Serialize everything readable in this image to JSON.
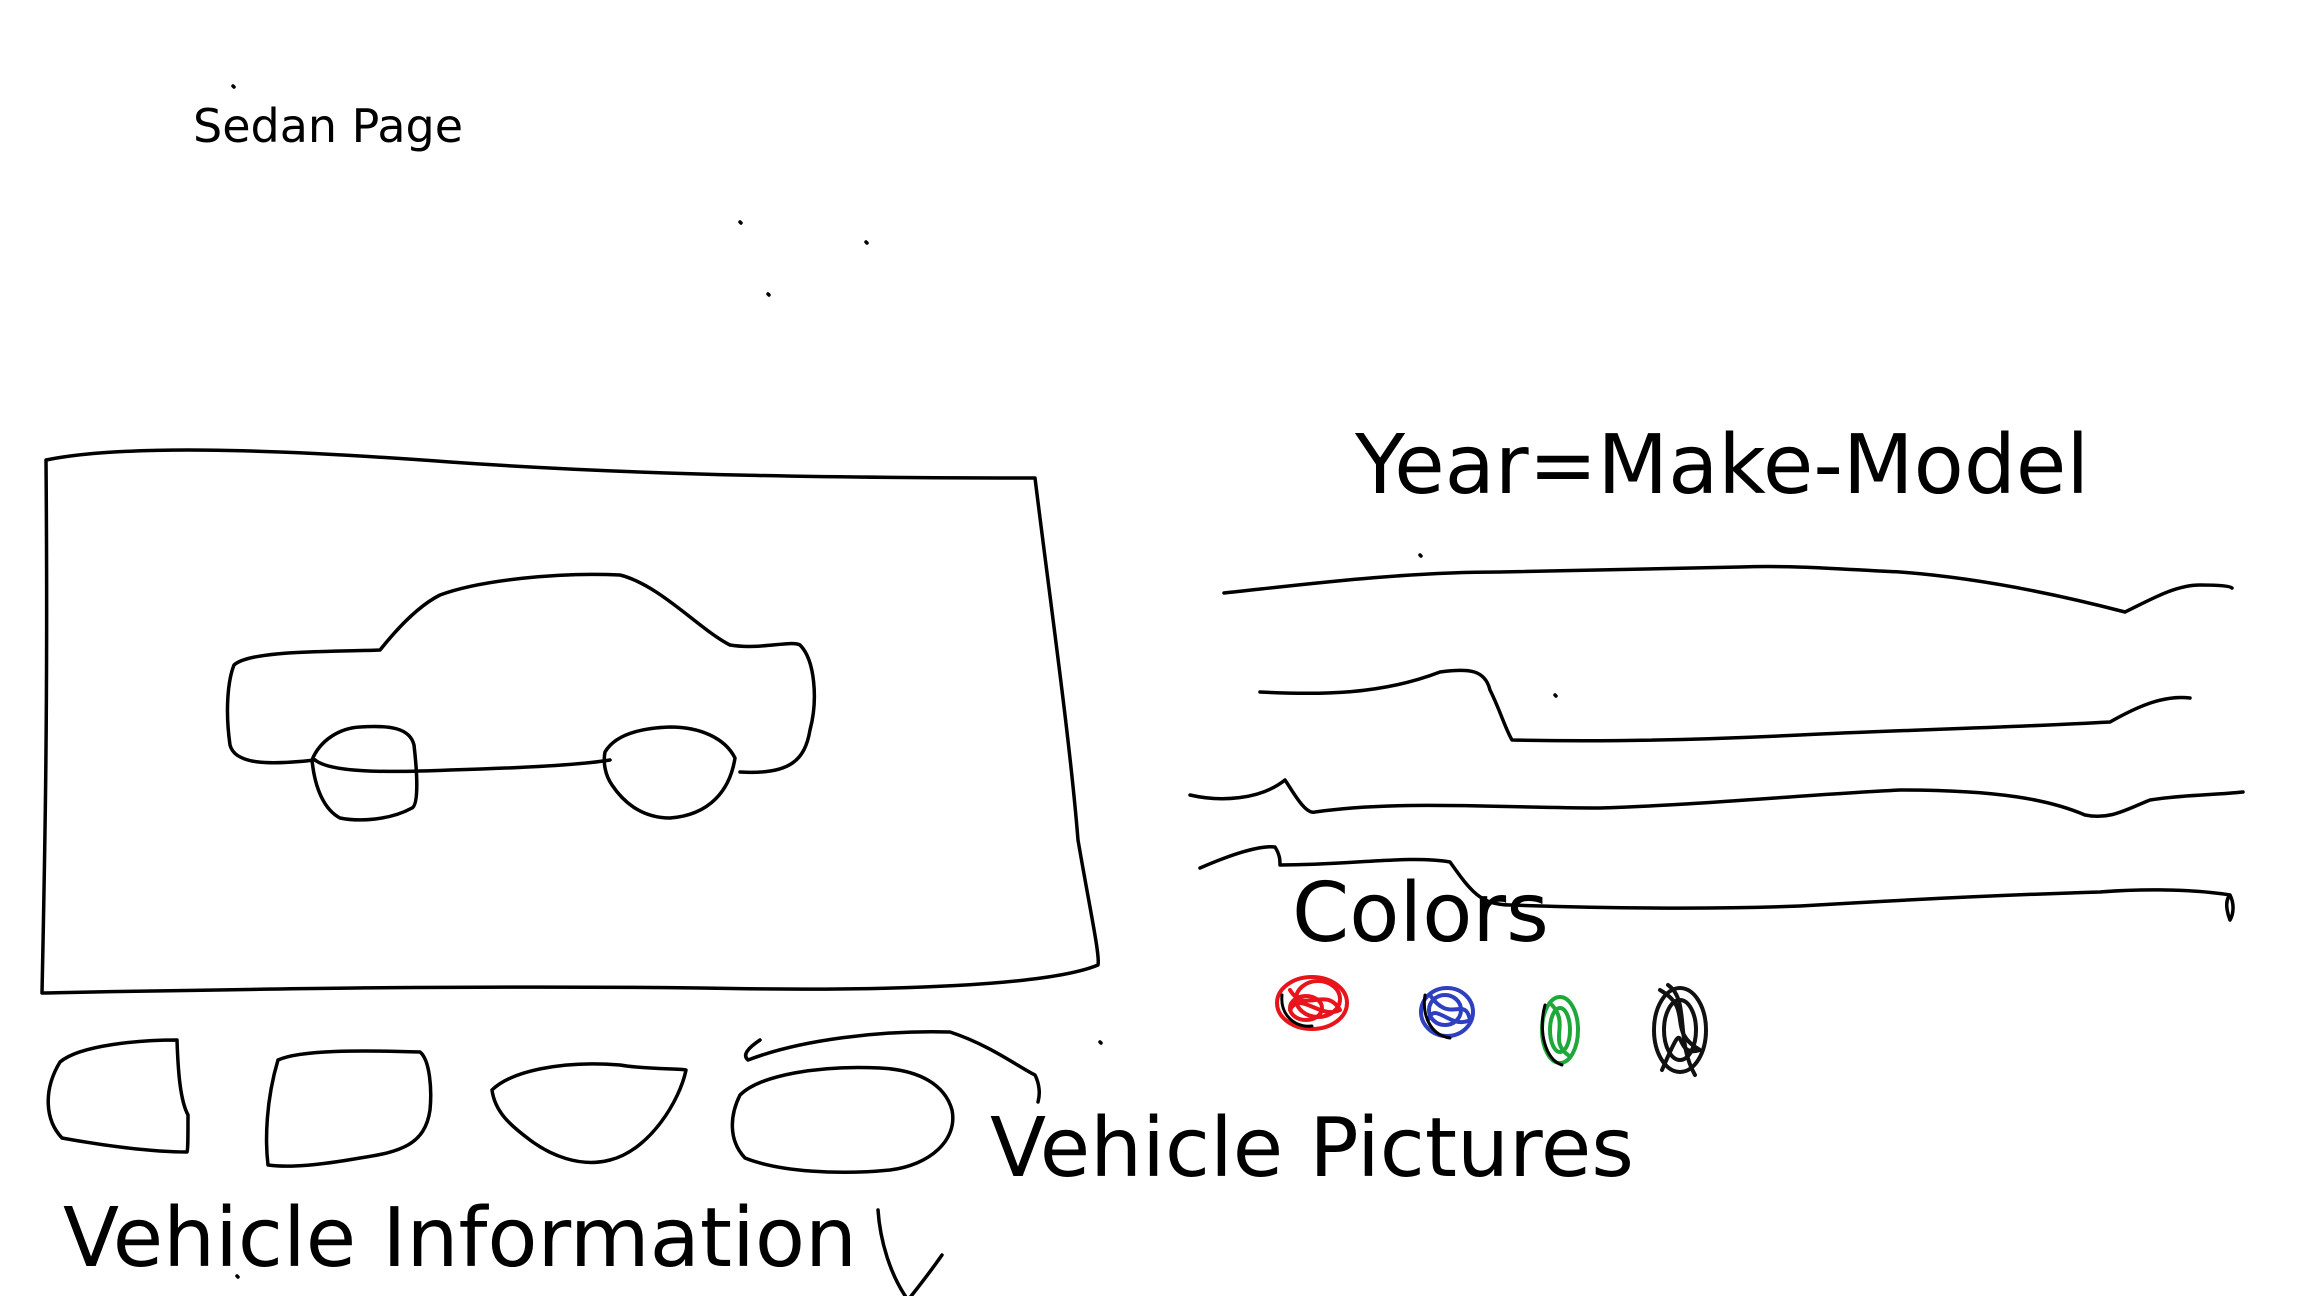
{
  "page": {
    "title": "Sedan Page"
  },
  "details": {
    "title": "Year=Make-Model"
  },
  "colors": {
    "label": "Colors",
    "swatches": [
      {
        "name": "red",
        "color": "#e8141c"
      },
      {
        "name": "blue",
        "color": "#2e3fbf"
      },
      {
        "name": "green",
        "color": "#1fa83a"
      },
      {
        "name": "black",
        "color": "#111111"
      }
    ]
  },
  "pictures": {
    "label": "Vehicle Pictures"
  },
  "info": {
    "label": "Vehicle Information"
  },
  "icons": {
    "main_image": "sedan-car-sketch",
    "scroll_hint": "down-arrow-icon"
  }
}
